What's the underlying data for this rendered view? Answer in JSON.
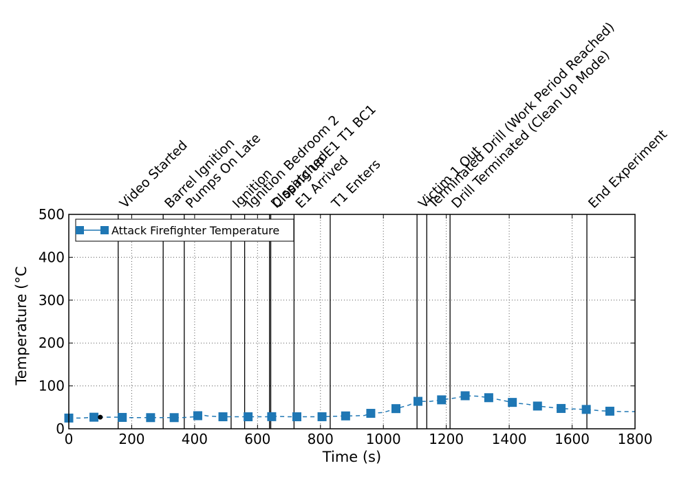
{
  "chart_data": {
    "type": "line",
    "title": "",
    "xlabel": "Time (s)",
    "ylabel": "Temperature (°C",
    "xlim": [
      0,
      1800
    ],
    "ylim": [
      0,
      500
    ],
    "xticks": [
      0,
      200,
      400,
      600,
      800,
      1000,
      1200,
      1400,
      1600,
      1800
    ],
    "yticks": [
      0,
      100,
      200,
      300,
      400,
      500
    ],
    "grid": true,
    "legend_position": "top-left",
    "series": [
      {
        "name": "Attack Firefighter Temperature",
        "color": "#1f77b4",
        "marker": "square",
        "x": [
          0,
          20,
          40,
          60,
          80,
          100,
          120,
          140,
          160,
          180,
          200,
          240,
          260,
          280,
          300,
          340,
          360,
          400,
          420,
          440,
          480,
          500,
          520,
          560,
          580,
          620,
          640,
          660,
          700,
          720,
          760,
          800,
          840,
          880,
          900,
          940,
          960,
          1000,
          1040,
          1080,
          1110,
          1150,
          1190,
          1230,
          1260,
          1300,
          1340,
          1380,
          1420,
          1460,
          1490,
          1530,
          1570,
          1610,
          1650,
          1690,
          1720,
          1760,
          1800
        ],
        "y": [
          25,
          25,
          25,
          26,
          27,
          27,
          27,
          27,
          27,
          26,
          26,
          26,
          26,
          26,
          26,
          26,
          26,
          28,
          33,
          30,
          28,
          28,
          28,
          28,
          28,
          28,
          28,
          29,
          28,
          28,
          28,
          28,
          29,
          30,
          30,
          31,
          36,
          38,
          47,
          55,
          64,
          64,
          68,
          72,
          77,
          76,
          72,
          66,
          60,
          57,
          53,
          50,
          47,
          46,
          45,
          42,
          41,
          40,
          40
        ],
        "marker_x": [
          0,
          80,
          170,
          260,
          335,
          410,
          490,
          570,
          645,
          725,
          805,
          880,
          960,
          1040,
          1110,
          1185,
          1260,
          1335,
          1410,
          1490,
          1565,
          1645,
          1720
        ]
      }
    ],
    "extra_point": {
      "x": 100,
      "y": 27,
      "color": "#000000"
    },
    "events": [
      {
        "time": 157,
        "label": "Video Started"
      },
      {
        "time": 300,
        "label": "Barrel Ignition"
      },
      {
        "time": 367,
        "label": "Pumps On Late"
      },
      {
        "time": 516,
        "label": "Ignition"
      },
      {
        "time": 559,
        "label": "Ignition Bedroom 2"
      },
      {
        "time": 638,
        "label": "Dispatched"
      },
      {
        "time": 642,
        "label": "Closing up E1 T1 BC1"
      },
      {
        "time": 716,
        "label": "E1 Arrived"
      },
      {
        "time": 831,
        "label": "T1 Enters"
      },
      {
        "time": 1107,
        "label": "Victim 1 Out"
      },
      {
        "time": 1138,
        "label": "Terminated Drill (Work Period Reached)"
      },
      {
        "time": 1212,
        "label": "Drill Terminated (Clean Up Mode)"
      },
      {
        "time": 1647,
        "label": "End Experiment"
      }
    ]
  }
}
